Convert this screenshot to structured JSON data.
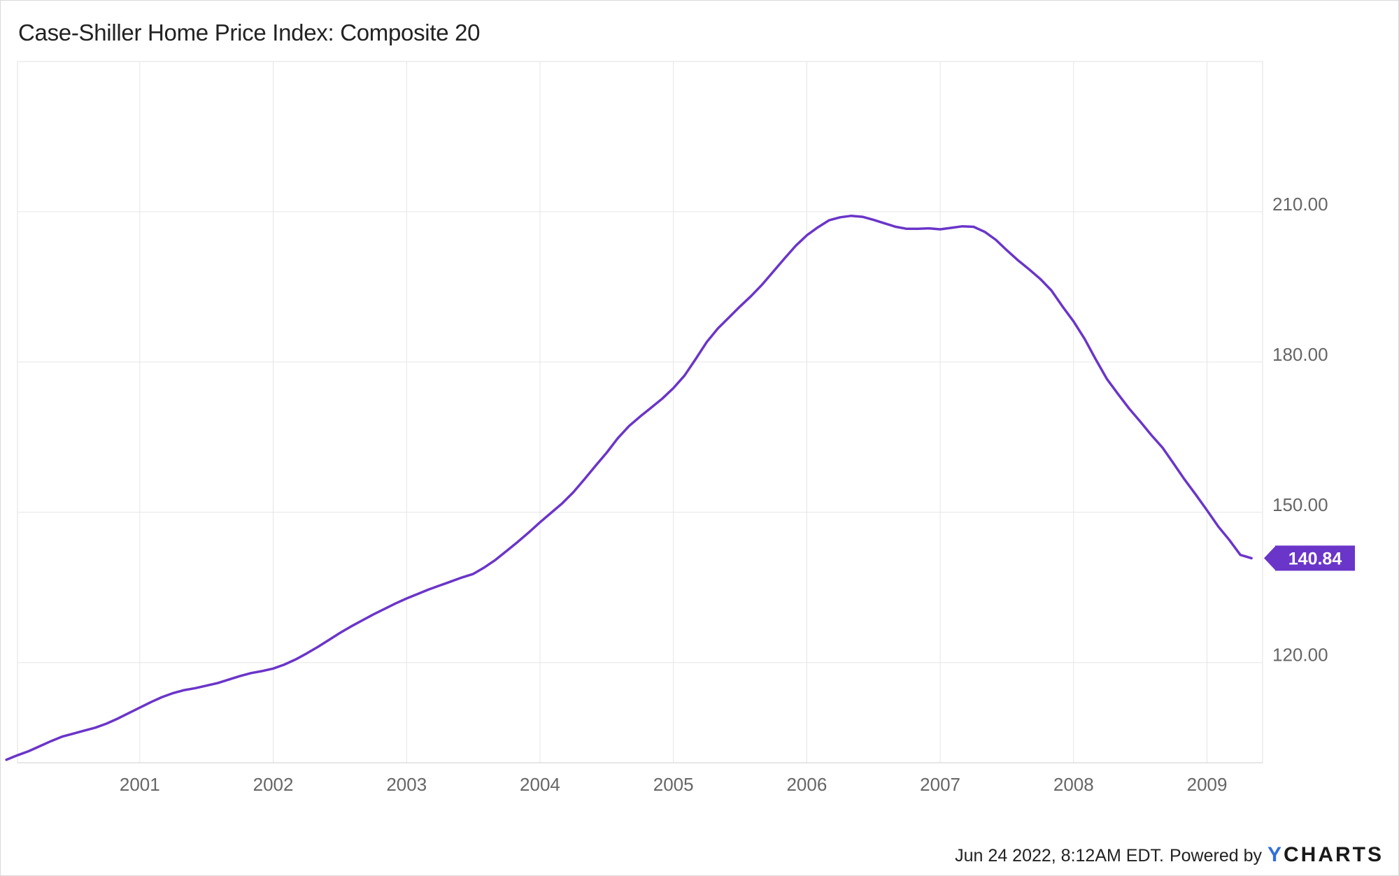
{
  "chart_data": {
    "type": "line",
    "title": "Case-Shiller Home Price Index: Composite 20",
    "xlabel": "",
    "ylabel": "",
    "x_ticks": [
      "2001",
      "2002",
      "2003",
      "2004",
      "2005",
      "2006",
      "2007",
      "2008",
      "2009"
    ],
    "y_ticks": [
      "120.00",
      "150.00",
      "180.00",
      "210.00"
    ],
    "ylim": [
      100,
      240
    ],
    "grid": true,
    "line_color": "#6a35c9",
    "last_value_label": "140.84",
    "series": [
      {
        "x": [
          "2000-01",
          "2000-02",
          "2000-03",
          "2000-04",
          "2000-05",
          "2000-06",
          "2000-07",
          "2000-08",
          "2000-09",
          "2000-10",
          "2000-11",
          "2000-12",
          "2001-01",
          "2001-02",
          "2001-03",
          "2001-04",
          "2001-05",
          "2001-06",
          "2001-07",
          "2001-08",
          "2001-09",
          "2001-10",
          "2001-11",
          "2001-12",
          "2002-01",
          "2002-02",
          "2002-03",
          "2002-04",
          "2002-05",
          "2002-06",
          "2002-07",
          "2002-08",
          "2002-09",
          "2002-10",
          "2002-11",
          "2002-12",
          "2003-01",
          "2003-02",
          "2003-03",
          "2003-04",
          "2003-05",
          "2003-06",
          "2003-07",
          "2003-08",
          "2003-09",
          "2003-10",
          "2003-11",
          "2003-12",
          "2004-01",
          "2004-02",
          "2004-03",
          "2004-04",
          "2004-05",
          "2004-06",
          "2004-07",
          "2004-08",
          "2004-09",
          "2004-10",
          "2004-11",
          "2004-12",
          "2005-01",
          "2005-02",
          "2005-03",
          "2005-04",
          "2005-05",
          "2005-06",
          "2005-07",
          "2005-08",
          "2005-09",
          "2005-10",
          "2005-11",
          "2005-12",
          "2006-01",
          "2006-02",
          "2006-03",
          "2006-04",
          "2006-05",
          "2006-06",
          "2006-07",
          "2006-08",
          "2006-09",
          "2006-10",
          "2006-11",
          "2006-12",
          "2007-01",
          "2007-02",
          "2007-03",
          "2007-04",
          "2007-05",
          "2007-06",
          "2007-07",
          "2007-08",
          "2007-09",
          "2007-10",
          "2007-11",
          "2007-12",
          "2008-01",
          "2008-02",
          "2008-03",
          "2008-04",
          "2008-05",
          "2008-06",
          "2008-07",
          "2008-08",
          "2008-09",
          "2008-10",
          "2008-11",
          "2008-12",
          "2009-01",
          "2009-02",
          "2009-03",
          "2009-04",
          "2009-05"
        ],
        "values": [
          100.6,
          101.5,
          102.3,
          103.3,
          104.3,
          105.2,
          105.8,
          106.4,
          107.0,
          107.8,
          108.8,
          109.9,
          111.0,
          112.1,
          113.1,
          113.9,
          114.5,
          114.9,
          115.4,
          115.9,
          116.6,
          117.3,
          117.9,
          118.3,
          118.8,
          119.6,
          120.6,
          121.8,
          123.1,
          124.5,
          125.9,
          127.2,
          128.4,
          129.6,
          130.7,
          131.8,
          132.8,
          133.7,
          134.6,
          135.4,
          136.2,
          137.0,
          137.7,
          139.0,
          140.5,
          142.3,
          144.1,
          146.0,
          148.0,
          149.9,
          151.8,
          154.0,
          156.6,
          159.3,
          161.9,
          164.8,
          167.2,
          169.1,
          170.9,
          172.7,
          174.8,
          177.3,
          180.6,
          184.0,
          186.7,
          188.9,
          191.1,
          193.2,
          195.5,
          198.1,
          200.7,
          203.2,
          205.3,
          206.9,
          208.3,
          208.9,
          209.2,
          209.0,
          208.4,
          207.7,
          207.0,
          206.6,
          206.6,
          206.7,
          206.5,
          206.8,
          207.1,
          207.0,
          206.0,
          204.4,
          202.3,
          200.3,
          198.5,
          196.6,
          194.3,
          191.1,
          188.1,
          184.6,
          180.5,
          176.6,
          173.6,
          170.7,
          168.1,
          165.4,
          162.9,
          159.7,
          156.5,
          153.5,
          150.4,
          147.2,
          144.5,
          141.5,
          140.84
        ]
      }
    ]
  },
  "footer": {
    "timestamp_text": "Jun 24 2022, 8:12AM EDT.",
    "powered_by": "Powered by",
    "brand_y": "Y",
    "brand_rest": "CHARTS",
    "brand_color": "#2f6fe0"
  }
}
